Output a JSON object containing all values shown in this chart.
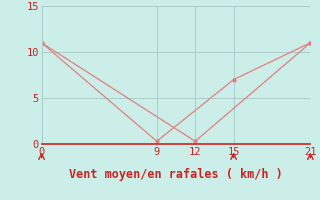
{
  "line1_x": [
    0,
    9,
    15,
    21
  ],
  "line1_y": [
    11,
    0.3,
    7,
    11
  ],
  "line2_x": [
    0,
    12,
    21
  ],
  "line2_y": [
    11,
    0.3,
    11
  ],
  "line_color": "#e08080",
  "marker_color": "#e08080",
  "bg_color": "#cceee8",
  "grid_color": "#aacccc",
  "xlabel": "Vent moyen/en rafales ( km/h )",
  "xlabel_color": "#cc2222",
  "tick_label_color": "#cc2222",
  "spine_color": "#cc2222",
  "xticks": [
    0,
    9,
    12,
    15,
    21
  ],
  "yticks": [
    0,
    5,
    10,
    15
  ],
  "xlim": [
    0,
    21
  ],
  "ylim": [
    0,
    15
  ],
  "arrow_xticks": [
    0,
    15,
    21
  ],
  "xlabel_fontsize": 8.5,
  "tick_fontsize": 7.5
}
